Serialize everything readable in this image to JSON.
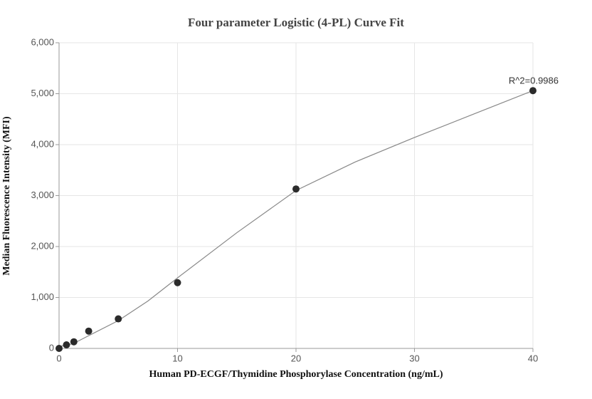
{
  "chart_data": {
    "type": "scatter",
    "title": "Four parameter Logistic (4-PL) Curve Fit",
    "x_label": "Human PD-ECGF/Thymidine Phosphorylase Concentration (ng/mL)",
    "y_label": "Median Fluorescence Intensity (MFI)",
    "annotation": "R^2=0.9986",
    "xlim": [
      0,
      40
    ],
    "xticks": [
      0,
      10,
      20,
      30,
      40
    ],
    "ylim": [
      0,
      6000
    ],
    "yticks": [
      0,
      {
        "value": 1000,
        "label": "1,000"
      },
      {
        "value": 2000,
        "label": "2,000"
      },
      {
        "value": 3000,
        "label": "3,000"
      },
      {
        "value": 4000,
        "label": "4,000"
      },
      {
        "value": 5000,
        "label": "5,000"
      },
      {
        "value": 6000,
        "label": "6,000"
      }
    ],
    "grid": true,
    "series": [
      {
        "kind": "points",
        "color": "#2b2b2b",
        "x": [
          0,
          0.625,
          1.25,
          2.5,
          5,
          10,
          20,
          40
        ],
        "values": [
          0,
          70,
          130,
          340,
          580,
          1290,
          3130,
          5060
        ]
      },
      {
        "kind": "line",
        "color": "#888888",
        "x": [
          0,
          0.625,
          1.25,
          2.5,
          5,
          7.5,
          10,
          15,
          20,
          25,
          30,
          35,
          40
        ],
        "values": [
          40,
          60,
          100,
          250,
          545,
          930,
          1385,
          2270,
          3100,
          3660,
          4140,
          4600,
          5060
        ]
      }
    ]
  }
}
